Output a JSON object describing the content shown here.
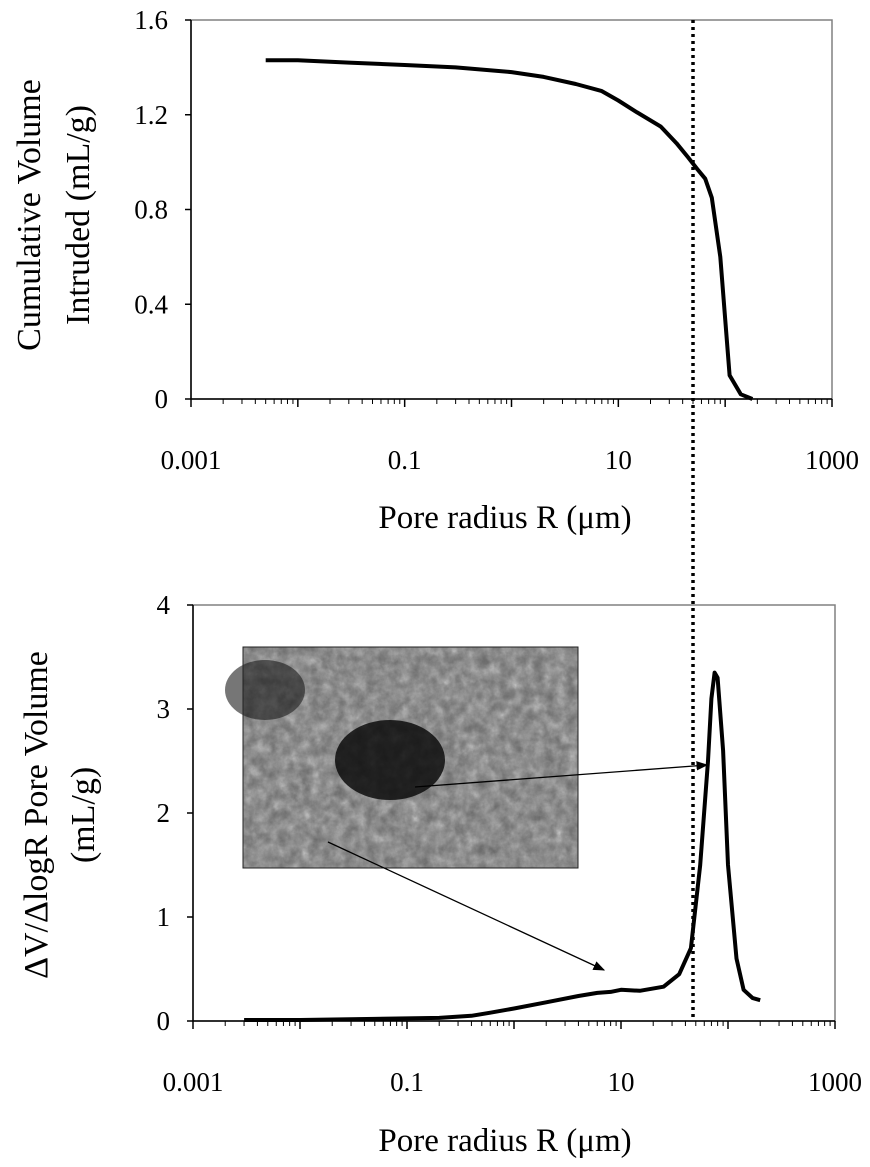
{
  "chart_data": [
    {
      "type": "line",
      "xscale": "log",
      "xlim": [
        0.001,
        1000
      ],
      "ylim": [
        0,
        1.6
      ],
      "xticks": [
        "0.001",
        "0.1",
        "10",
        "1000"
      ],
      "yticks": [
        "0",
        "0.4",
        "0.8",
        "1.2",
        "1.6"
      ],
      "xlabel": "Pore radius R (μm)",
      "ylabel_line1": "Cumulative Volume",
      "ylabel_line2": "Intruded (mL/g)",
      "legend": "none",
      "grid": false,
      "series": [
        {
          "color": "#000000",
          "x": [
            0.005,
            0.01,
            0.03,
            0.1,
            0.3,
            1,
            2,
            4,
            7,
            10,
            15,
            25,
            35,
            45,
            55,
            65,
            75,
            90,
            110,
            140,
            180
          ],
          "y": [
            1.43,
            1.43,
            1.42,
            1.41,
            1.4,
            1.38,
            1.36,
            1.33,
            1.3,
            1.26,
            1.21,
            1.15,
            1.08,
            1.02,
            0.97,
            0.93,
            0.85,
            0.6,
            0.1,
            0.02,
            0.0
          ]
        }
      ]
    },
    {
      "type": "line",
      "xscale": "log",
      "xlim": [
        0.001,
        1000
      ],
      "ylim": [
        0,
        4
      ],
      "xticks": [
        "0.001",
        "0.1",
        "10",
        "1000"
      ],
      "yticks": [
        "0",
        "1",
        "2",
        "3",
        "4"
      ],
      "xlabel": "Pore radius R (μm)",
      "ylabel_line1": "ΔV/ΔlogR Pore Volume",
      "ylabel_line2": "(mL/g)",
      "legend": "none",
      "grid": false,
      "series": [
        {
          "color": "#000000",
          "x": [
            0.003,
            0.01,
            0.05,
            0.2,
            0.4,
            0.6,
            1,
            2,
            4,
            6,
            8,
            10,
            15,
            25,
            35,
            45,
            55,
            65,
            70,
            75,
            80,
            90,
            100,
            120,
            140,
            170,
            200
          ],
          "y": [
            0.01,
            0.01,
            0.02,
            0.03,
            0.05,
            0.08,
            0.12,
            0.18,
            0.24,
            0.27,
            0.28,
            0.3,
            0.29,
            0.33,
            0.45,
            0.7,
            1.5,
            2.5,
            3.1,
            3.35,
            3.3,
            2.6,
            1.5,
            0.6,
            0.3,
            0.22,
            0.2
          ]
        }
      ]
    }
  ],
  "reference_line": {
    "x": 50,
    "style": "dotted"
  },
  "inset_image": {
    "description": "sem-micrograph"
  }
}
